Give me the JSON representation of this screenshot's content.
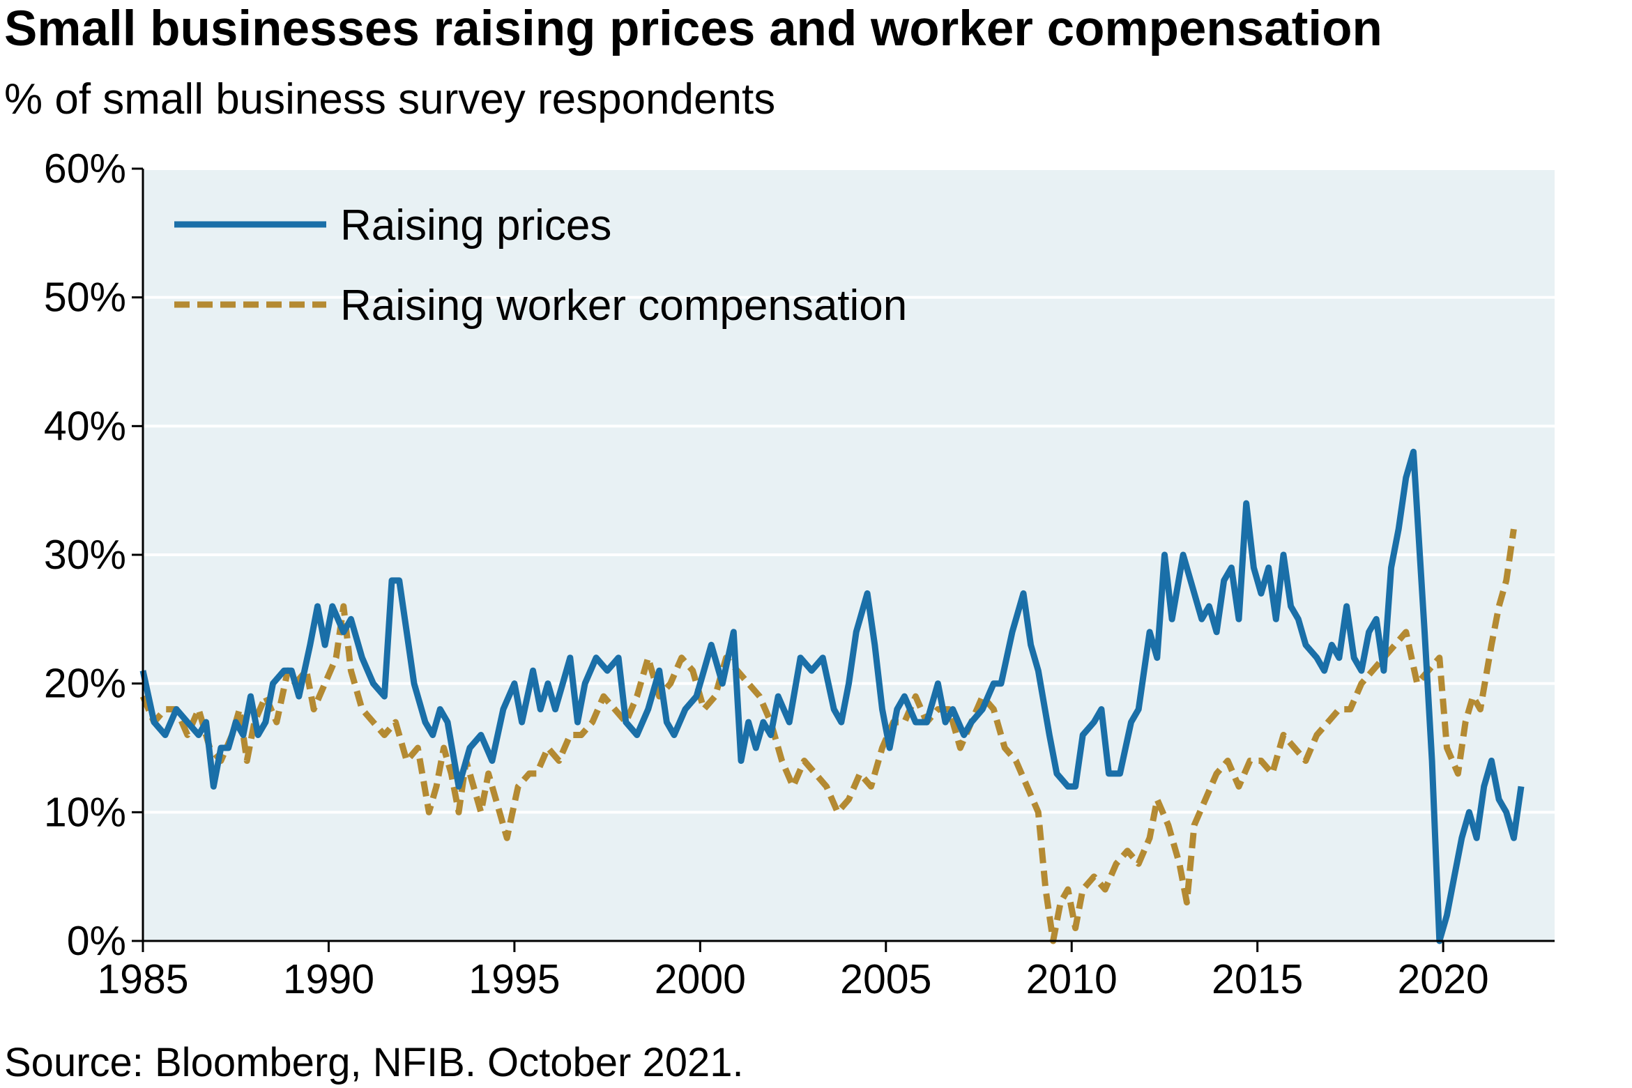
{
  "chart_data": {
    "type": "line",
    "title": "Small businesses raising prices and worker compensation",
    "subtitle": "% of small business survey respondents",
    "source": "Source: Bloomberg, NFIB. October 2021.",
    "xlim": [
      1985,
      2023
    ],
    "ylim": [
      0,
      60
    ],
    "x_ticks": [
      1985,
      1990,
      1995,
      2000,
      2005,
      2010,
      2015,
      2020
    ],
    "x_tick_labels": [
      "1985",
      "1990",
      "1995",
      "2000",
      "2005",
      "2010",
      "2015",
      "2020"
    ],
    "y_ticks": [
      0,
      10,
      20,
      30,
      40,
      50,
      60
    ],
    "y_tick_labels": [
      "0%",
      "10%",
      "20%",
      "30%",
      "40%",
      "50%",
      "60%"
    ],
    "grid": "horizontal",
    "legend_position": "top-left",
    "colors": {
      "plot_background": "#e8f1f4",
      "raising_prices": "#1a6fa8",
      "raising_compensation": "#b48a32",
      "grid": "#ffffff"
    },
    "series": [
      {
        "name": "Raising prices",
        "style": "solid",
        "points": [
          [
            1985.0,
            21
          ],
          [
            1985.3,
            17
          ],
          [
            1985.6,
            16
          ],
          [
            1985.9,
            18
          ],
          [
            1986.2,
            17
          ],
          [
            1986.5,
            16
          ],
          [
            1986.7,
            17
          ],
          [
            1986.9,
            12
          ],
          [
            1987.1,
            15
          ],
          [
            1987.3,
            15
          ],
          [
            1987.5,
            17
          ],
          [
            1987.7,
            16
          ],
          [
            1987.9,
            19
          ],
          [
            1988.1,
            16
          ],
          [
            1988.3,
            17
          ],
          [
            1988.5,
            20
          ],
          [
            1988.8,
            21
          ],
          [
            1989.0,
            21
          ],
          [
            1989.2,
            19
          ],
          [
            1989.5,
            23
          ],
          [
            1989.7,
            26
          ],
          [
            1989.9,
            23
          ],
          [
            1990.1,
            26
          ],
          [
            1990.4,
            24
          ],
          [
            1990.6,
            25
          ],
          [
            1990.9,
            22
          ],
          [
            1991.2,
            20
          ],
          [
            1991.5,
            19
          ],
          [
            1991.7,
            28
          ],
          [
            1991.9,
            28
          ],
          [
            1992.1,
            24
          ],
          [
            1992.3,
            20
          ],
          [
            1992.6,
            17
          ],
          [
            1992.8,
            16
          ],
          [
            1993.0,
            18
          ],
          [
            1993.2,
            17
          ],
          [
            1993.5,
            12
          ],
          [
            1993.8,
            15
          ],
          [
            1994.1,
            16
          ],
          [
            1994.4,
            14
          ],
          [
            1994.7,
            18
          ],
          [
            1995.0,
            20
          ],
          [
            1995.2,
            17
          ],
          [
            1995.5,
            21
          ],
          [
            1995.7,
            18
          ],
          [
            1995.9,
            20
          ],
          [
            1996.1,
            18
          ],
          [
            1996.3,
            20
          ],
          [
            1996.5,
            22
          ],
          [
            1996.7,
            17
          ],
          [
            1996.9,
            20
          ],
          [
            1997.2,
            22
          ],
          [
            1997.5,
            21
          ],
          [
            1997.8,
            22
          ],
          [
            1998.0,
            17
          ],
          [
            1998.3,
            16
          ],
          [
            1998.6,
            18
          ],
          [
            1998.9,
            21
          ],
          [
            1999.1,
            17
          ],
          [
            1999.3,
            16
          ],
          [
            1999.6,
            18
          ],
          [
            1999.9,
            19
          ],
          [
            2000.1,
            21
          ],
          [
            2000.3,
            23
          ],
          [
            2000.6,
            20
          ],
          [
            2000.9,
            24
          ],
          [
            2001.1,
            14
          ],
          [
            2001.3,
            17
          ],
          [
            2001.5,
            15
          ],
          [
            2001.7,
            17
          ],
          [
            2001.9,
            16
          ],
          [
            2002.1,
            19
          ],
          [
            2002.4,
            17
          ],
          [
            2002.7,
            22
          ],
          [
            2003.0,
            21
          ],
          [
            2003.3,
            22
          ],
          [
            2003.6,
            18
          ],
          [
            2003.8,
            17
          ],
          [
            2004.0,
            20
          ],
          [
            2004.2,
            24
          ],
          [
            2004.5,
            27
          ],
          [
            2004.7,
            23
          ],
          [
            2004.9,
            18
          ],
          [
            2005.1,
            15
          ],
          [
            2005.3,
            18
          ],
          [
            2005.5,
            19
          ],
          [
            2005.8,
            17
          ],
          [
            2006.1,
            17
          ],
          [
            2006.4,
            20
          ],
          [
            2006.6,
            17
          ],
          [
            2006.8,
            18
          ],
          [
            2007.1,
            16
          ],
          [
            2007.3,
            17
          ],
          [
            2007.6,
            18
          ],
          [
            2007.9,
            20
          ],
          [
            2008.1,
            20
          ],
          [
            2008.4,
            24
          ],
          [
            2008.7,
            27
          ],
          [
            2008.9,
            23
          ],
          [
            2009.1,
            21
          ],
          [
            2009.4,
            16
          ],
          [
            2009.6,
            13
          ],
          [
            2009.9,
            12
          ],
          [
            2010.1,
            12
          ],
          [
            2010.3,
            16
          ],
          [
            2010.6,
            17
          ],
          [
            2010.8,
            18
          ],
          [
            2011.0,
            13
          ],
          [
            2011.3,
            13
          ],
          [
            2011.6,
            17
          ],
          [
            2011.8,
            18
          ],
          [
            2012.1,
            24
          ],
          [
            2012.3,
            22
          ],
          [
            2012.5,
            30
          ],
          [
            2012.7,
            25
          ],
          [
            2013.0,
            30
          ],
          [
            2013.2,
            28
          ],
          [
            2013.5,
            25
          ],
          [
            2013.7,
            26
          ],
          [
            2013.9,
            24
          ],
          [
            2014.1,
            28
          ],
          [
            2014.3,
            29
          ],
          [
            2014.5,
            25
          ],
          [
            2014.7,
            34
          ],
          [
            2014.9,
            29
          ],
          [
            2015.1,
            27
          ],
          [
            2015.3,
            29
          ],
          [
            2015.5,
            25
          ],
          [
            2015.7,
            30
          ],
          [
            2015.9,
            26
          ],
          [
            2016.1,
            25
          ],
          [
            2016.3,
            23
          ],
          [
            2016.6,
            22
          ],
          [
            2016.8,
            21
          ],
          [
            2017.0,
            23
          ],
          [
            2017.2,
            22
          ],
          [
            2017.4,
            26
          ],
          [
            2017.6,
            22
          ],
          [
            2017.8,
            21
          ],
          [
            2018.0,
            24
          ],
          [
            2018.2,
            25
          ],
          [
            2018.4,
            21
          ],
          [
            2018.6,
            29
          ],
          [
            2018.8,
            32
          ],
          [
            2019.0,
            36
          ],
          [
            2019.2,
            38
          ],
          [
            2019.5,
            24
          ],
          [
            2019.7,
            14
          ],
          [
            2019.9,
            0
          ],
          [
            2020.1,
            2
          ],
          [
            2020.3,
            5
          ],
          [
            2020.5,
            8
          ],
          [
            2020.7,
            10
          ],
          [
            2020.9,
            8
          ],
          [
            2021.1,
            12
          ],
          [
            2021.3,
            14
          ],
          [
            2021.5,
            11
          ],
          [
            2021.7,
            10
          ],
          [
            2021.9,
            8
          ],
          [
            2022.1,
            12
          ]
        ]
      },
      {
        "name": "Raising worker compensation",
        "style": "dashed",
        "points": [
          [
            1985.0,
            19
          ],
          [
            1985.3,
            17
          ],
          [
            1985.6,
            18
          ],
          [
            1985.9,
            18
          ],
          [
            1986.2,
            16
          ],
          [
            1986.5,
            18
          ],
          [
            1986.8,
            15
          ],
          [
            1987.1,
            14
          ],
          [
            1987.4,
            16
          ],
          [
            1987.6,
            18
          ],
          [
            1987.8,
            14
          ],
          [
            1988.0,
            17
          ],
          [
            1988.3,
            19
          ],
          [
            1988.6,
            17
          ],
          [
            1988.9,
            21
          ],
          [
            1989.1,
            20
          ],
          [
            1989.4,
            21
          ],
          [
            1989.6,
            18
          ],
          [
            1989.9,
            20
          ],
          [
            1990.2,
            22
          ],
          [
            1990.4,
            26
          ],
          [
            1990.6,
            21
          ],
          [
            1990.9,
            18
          ],
          [
            1991.2,
            17
          ],
          [
            1991.5,
            16
          ],
          [
            1991.8,
            17
          ],
          [
            1992.1,
            14
          ],
          [
            1992.4,
            15
          ],
          [
            1992.7,
            10
          ],
          [
            1992.9,
            12
          ],
          [
            1993.1,
            15
          ],
          [
            1993.3,
            13
          ],
          [
            1993.5,
            10
          ],
          [
            1993.7,
            14
          ],
          [
            1993.9,
            12
          ],
          [
            1994.1,
            10
          ],
          [
            1994.3,
            13
          ],
          [
            1994.6,
            10
          ],
          [
            1994.8,
            8
          ],
          [
            1995.1,
            12
          ],
          [
            1995.4,
            13
          ],
          [
            1995.6,
            13
          ],
          [
            1995.9,
            15
          ],
          [
            1996.2,
            14
          ],
          [
            1996.5,
            16
          ],
          [
            1996.8,
            16
          ],
          [
            1997.1,
            17
          ],
          [
            1997.4,
            19
          ],
          [
            1997.7,
            18
          ],
          [
            1998.0,
            17
          ],
          [
            1998.3,
            19
          ],
          [
            1998.6,
            22
          ],
          [
            1998.9,
            19
          ],
          [
            1999.2,
            20
          ],
          [
            1999.5,
            22
          ],
          [
            1999.8,
            21
          ],
          [
            2000.1,
            18
          ],
          [
            2000.4,
            19
          ],
          [
            2000.7,
            22
          ],
          [
            2001.0,
            21
          ],
          [
            2001.3,
            20
          ],
          [
            2001.6,
            19
          ],
          [
            2001.9,
            17
          ],
          [
            2002.2,
            14
          ],
          [
            2002.5,
            12
          ],
          [
            2002.8,
            14
          ],
          [
            2003.1,
            13
          ],
          [
            2003.4,
            12
          ],
          [
            2003.7,
            10
          ],
          [
            2004.0,
            11
          ],
          [
            2004.3,
            13
          ],
          [
            2004.6,
            12
          ],
          [
            2004.9,
            15
          ],
          [
            2005.2,
            17
          ],
          [
            2005.5,
            17
          ],
          [
            2005.8,
            19
          ],
          [
            2006.1,
            17
          ],
          [
            2006.4,
            18
          ],
          [
            2006.7,
            18
          ],
          [
            2007.0,
            15
          ],
          [
            2007.3,
            17
          ],
          [
            2007.6,
            19
          ],
          [
            2007.9,
            18
          ],
          [
            2008.2,
            15
          ],
          [
            2008.5,
            14
          ],
          [
            2008.8,
            12
          ],
          [
            2009.1,
            10
          ],
          [
            2009.3,
            4
          ],
          [
            2009.5,
            0
          ],
          [
            2009.7,
            3
          ],
          [
            2009.9,
            4
          ],
          [
            2010.1,
            1
          ],
          [
            2010.3,
            4
          ],
          [
            2010.6,
            5
          ],
          [
            2010.9,
            4
          ],
          [
            2011.2,
            6
          ],
          [
            2011.5,
            7
          ],
          [
            2011.8,
            6
          ],
          [
            2012.1,
            8
          ],
          [
            2012.3,
            11
          ],
          [
            2012.6,
            9
          ],
          [
            2012.9,
            6
          ],
          [
            2013.1,
            3
          ],
          [
            2013.3,
            9
          ],
          [
            2013.6,
            11
          ],
          [
            2013.9,
            13
          ],
          [
            2014.2,
            14
          ],
          [
            2014.5,
            12
          ],
          [
            2014.8,
            14
          ],
          [
            2015.1,
            14
          ],
          [
            2015.4,
            13
          ],
          [
            2015.7,
            16
          ],
          [
            2016.0,
            15
          ],
          [
            2016.3,
            14
          ],
          [
            2016.6,
            16
          ],
          [
            2016.9,
            17
          ],
          [
            2017.2,
            18
          ],
          [
            2017.5,
            18
          ],
          [
            2017.8,
            20
          ],
          [
            2018.1,
            21
          ],
          [
            2018.4,
            22
          ],
          [
            2018.7,
            23
          ],
          [
            2019.0,
            24
          ],
          [
            2019.3,
            20
          ],
          [
            2019.6,
            21
          ],
          [
            2019.9,
            22
          ],
          [
            2020.1,
            15
          ],
          [
            2020.4,
            13
          ],
          [
            2020.6,
            17
          ],
          [
            2020.8,
            19
          ],
          [
            2021.0,
            18
          ],
          [
            2021.3,
            23
          ],
          [
            2021.5,
            26
          ],
          [
            2021.7,
            28
          ],
          [
            2021.9,
            32
          ]
        ]
      }
    ]
  }
}
